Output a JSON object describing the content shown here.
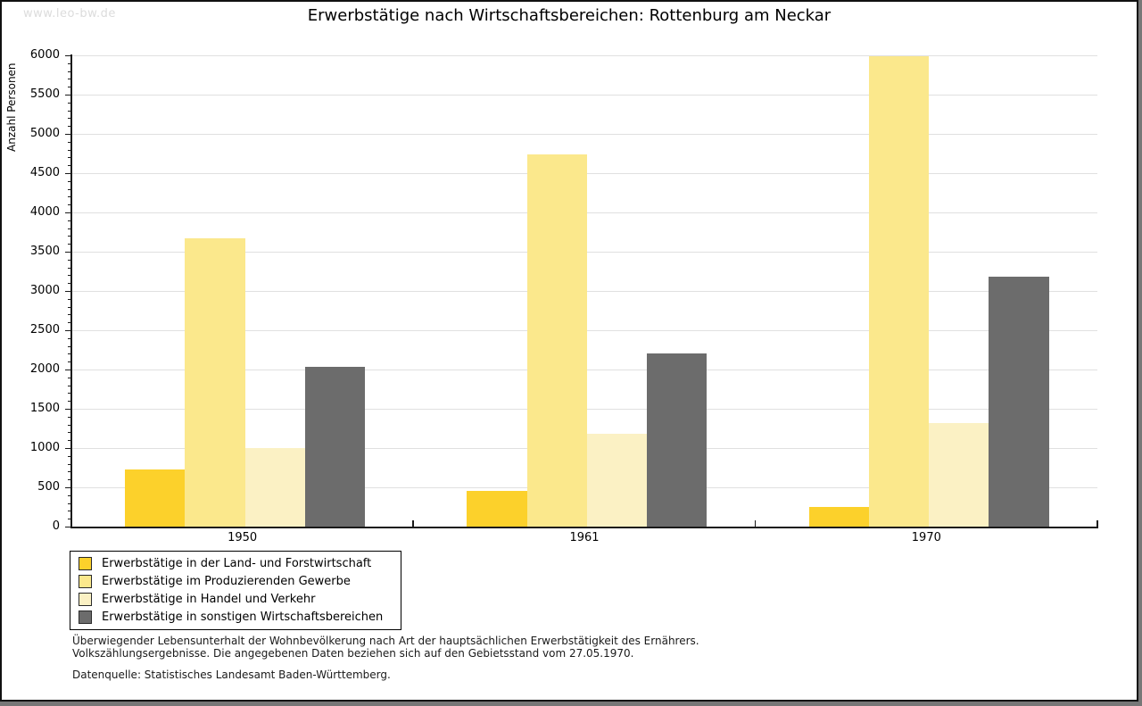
{
  "watermark": "www.leo-bw.de",
  "title": "Erwerbstätige nach Wirtschaftsbereichen: Rottenburg am Neckar",
  "chart_data": {
    "type": "bar",
    "title": "Erwerbstätige nach Wirtschaftsbereichen: Rottenburg am Neckar",
    "xlabel": "",
    "ylabel": "Anzahl Personen",
    "ylim": [
      0,
      6000
    ],
    "ytick_step": 500,
    "yminor_step": 100,
    "grid": true,
    "legend_position": "bottom-left",
    "categories": [
      "1950",
      "1961",
      "1970"
    ],
    "series": [
      {
        "name": "Erwerbstätige in der Land- und Forstwirtschaft",
        "color": "#FCD12B",
        "values": [
          730,
          455,
          245
        ]
      },
      {
        "name": "Erwerbstätige im Produzierenden Gewerbe",
        "color": "#FBE88C",
        "values": [
          3670,
          4740,
          5985
        ]
      },
      {
        "name": "Erwerbstätige in Handel und Verkehr",
        "color": "#FBF1C4",
        "values": [
          1000,
          1180,
          1315
        ]
      },
      {
        "name": "Erwerbstätige in sonstigen Wirtschaftsbereichen",
        "color": "#6C6C6C",
        "values": [
          2030,
          2205,
          3180
        ]
      }
    ]
  },
  "footer": {
    "line1": "Überwiegender Lebensunterhalt der Wohnbevölkerung nach Art der hauptsächlichen Erwerbstätigkeit des Ernährers.",
    "line2": "Volkszählungsergebnisse. Die angegebenen Daten beziehen sich auf den Gebietsstand vom 27.05.1970.",
    "source": "Datenquelle: Statistisches Landesamt Baden-Württemberg."
  },
  "colors": {
    "gridline": "#E0E0E0",
    "axis": "#1A1A1A",
    "watermark": "#DCDCDC"
  }
}
